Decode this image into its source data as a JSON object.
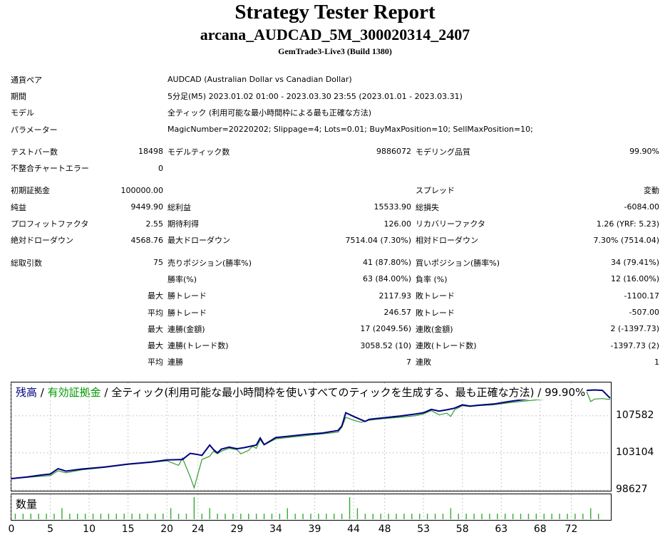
{
  "report": {
    "title": "Strategy Tester Report",
    "subtitle": "arcana_AUDCAD_5M_300020314_2407",
    "build": "GemTrade3-Live3 (Build 1380)"
  },
  "info": [
    {
      "label": "通貨ペア",
      "value": "AUDCAD (Australian Dollar vs Canadian Dollar)"
    },
    {
      "label": "期間",
      "value": "5分足(M5) 2023.01.02 01:00 - 2023.03.30 23:55 (2023.01.01 - 2023.03.31)"
    },
    {
      "label": "モデル",
      "value": "全ティック (利用可能な最小時間枠による最も正確な方法)"
    },
    {
      "label": "パラメーター",
      "value": "MagicNumber=20220202; Slippage=4; Lots=0.01; BuyMaxPosition=10; SellMaxPosition=10;"
    }
  ],
  "test": [
    [
      "テストバー数",
      "18498",
      "モデルティック数",
      "9886072",
      "モデリング品質",
      "99.90%"
    ],
    [
      "不整合チャートエラー",
      "0",
      "",
      "",
      "",
      ""
    ]
  ],
  "money": [
    [
      "初期証拠金",
      "100000.00",
      "",
      "",
      "スプレッド",
      "変動"
    ],
    [
      "純益",
      "9449.90",
      "総利益",
      "15533.90",
      "総損失",
      "-6084.00"
    ],
    [
      "プロフィットファクタ",
      "2.55",
      "期待利得",
      "126.00",
      "リカバリーファクタ",
      "1.26 (YRF: 5.23)"
    ],
    [
      "絶対ドローダウン",
      "4568.76",
      "最大ドローダウン",
      "7514.04 (7.30%)",
      "相対ドローダウン",
      "7.30% (7514.04)"
    ]
  ],
  "trades": [
    [
      "総取引数",
      "75",
      "売りポジション(勝率%)",
      "41 (87.80%)",
      "買いポジション(勝率%)",
      "34 (79.41%)"
    ],
    [
      "",
      "",
      "勝率(%)",
      "63 (84.00%)",
      "負率 (%)",
      "12 (16.00%)"
    ],
    [
      "",
      "最大",
      "勝トレード",
      "2117.93",
      "敗トレード",
      "-1100.17"
    ],
    [
      "",
      "平均",
      "勝トレード",
      "246.57",
      "敗トレード",
      "-507.00"
    ],
    [
      "",
      "最大",
      "連勝(金額)",
      "17 (2049.56)",
      "連敗(金額)",
      "2 (-1397.73)"
    ],
    [
      "",
      "最大",
      "連勝(トレード数)",
      "3058.52 (10)",
      "連敗(トレード数)",
      "-1397.73 (2)"
    ],
    [
      "",
      "平均",
      "連勝",
      "7",
      "連敗",
      "1"
    ]
  ],
  "chart_legend": {
    "balance": "残高",
    "sep1": " / ",
    "equity": "有効証拠金",
    "rest": " / 全ティック(利用可能な最小時間枠を使いすべてのティックを生成する、最も正確な方法) / 99.90%"
  },
  "volume_label": "数量",
  "colors": {
    "balance": "#000080",
    "equity": "#339933",
    "grid": "#c8c8c8",
    "volume": "#33aa33"
  },
  "chart_data": {
    "type": "line",
    "ylim": [
      98627,
      111600
    ],
    "yticks": [
      98627,
      103104,
      107582
    ],
    "xlim": [
      0,
      77
    ],
    "xticks": [
      0,
      5,
      10,
      15,
      20,
      24,
      29,
      34,
      39,
      44,
      48,
      53,
      58,
      63,
      68,
      72
    ],
    "series": [
      {
        "name": "残高",
        "x": [
          0,
          2,
          4,
          5,
          6,
          7,
          9,
          12,
          15,
          18,
          20,
          22,
          23,
          24,
          24.5,
          25.5,
          26,
          26.5,
          27,
          28,
          29,
          30,
          31,
          31.5,
          32,
          32.5,
          34,
          36,
          38,
          40,
          42,
          42.5,
          43,
          44,
          45,
          45.5,
          46,
          47,
          48,
          50,
          52,
          53,
          54,
          55,
          56,
          57,
          58,
          59,
          60,
          62,
          64,
          66,
          68,
          70,
          72,
          73,
          74,
          75,
          76,
          77
        ],
        "values": [
          100000,
          100200,
          100450,
          100550,
          101200,
          100900,
          101150,
          101400,
          101750,
          102000,
          102250,
          102300,
          103050,
          102900,
          102800,
          104050,
          103500,
          103100,
          103550,
          103800,
          103600,
          103750,
          103950,
          104050,
          104900,
          104100,
          104950,
          105150,
          105350,
          105500,
          105800,
          106350,
          107950,
          107500,
          107100,
          106900,
          107150,
          107250,
          107350,
          107550,
          107800,
          107950,
          108350,
          108150,
          108300,
          108500,
          108900,
          108750,
          108850,
          109000,
          109300,
          109550,
          109800,
          110100,
          110400,
          110500,
          110650,
          110700,
          110650,
          109700
        ]
      },
      {
        "name": "有効証拠金",
        "x": [
          0,
          2,
          4,
          5,
          6,
          7,
          9,
          12,
          15,
          18,
          20,
          21.5,
          22,
          23,
          23.5,
          24.5,
          25.5,
          26,
          26.5,
          27,
          28,
          29,
          29.5,
          30.5,
          31,
          31.5,
          32,
          32.5,
          34,
          36,
          38,
          40,
          42,
          42.5,
          43,
          44,
          45,
          45.5,
          46,
          47,
          48,
          50,
          52,
          53,
          54,
          55,
          56,
          56.5,
          57,
          58,
          59,
          60,
          62,
          64,
          66,
          68,
          70,
          72,
          73,
          74,
          74.5,
          75,
          76,
          77
        ],
        "values": [
          100000,
          100150,
          100300,
          100350,
          100950,
          100700,
          101050,
          101350,
          101700,
          101950,
          102150,
          101600,
          102500,
          100200,
          98900,
          102300,
          102700,
          103300,
          103000,
          103300,
          103650,
          103500,
          103000,
          103400,
          103900,
          103650,
          104700,
          104050,
          104800,
          105000,
          105200,
          105400,
          105600,
          106200,
          107400,
          107050,
          106800,
          106900,
          107050,
          107150,
          107250,
          107400,
          107600,
          107800,
          108200,
          107700,
          107900,
          107500,
          108300,
          108800,
          108700,
          108800,
          108900,
          109150,
          109350,
          109550,
          109700,
          110150,
          110350,
          110450,
          109300,
          109600,
          109650,
          109550
        ]
      }
    ],
    "volume": {
      "name": "数量",
      "x": [
        0,
        1,
        2,
        3,
        4,
        5,
        6,
        7,
        8,
        9,
        10,
        11,
        12,
        13,
        14,
        15,
        16,
        17,
        18,
        19,
        20,
        21,
        22,
        23,
        24,
        25,
        26,
        27,
        28,
        29,
        30,
        31,
        32,
        33,
        34,
        35,
        36,
        37,
        38,
        39,
        40,
        41,
        42,
        43,
        44,
        45,
        46,
        47,
        48,
        49,
        50,
        51,
        52,
        53,
        54,
        55,
        56,
        57,
        58,
        59,
        60,
        61,
        62,
        63,
        64,
        65,
        66,
        67,
        68,
        69,
        70,
        71,
        72,
        73,
        74,
        75
      ],
      "values": [
        1,
        1,
        1,
        1,
        1,
        1,
        2,
        1,
        1,
        1,
        1,
        1,
        1,
        1,
        1,
        1,
        1,
        1,
        1,
        1,
        2,
        1,
        1,
        4,
        1,
        2,
        1,
        1,
        1,
        1,
        1,
        1,
        1,
        1,
        1,
        2,
        1,
        1,
        1,
        1,
        1,
        1,
        1,
        4,
        2,
        1,
        1,
        1,
        1,
        1,
        1,
        1,
        1,
        1,
        1,
        1,
        2,
        1,
        1,
        1,
        1,
        1,
        1,
        1,
        1,
        1,
        1,
        1,
        1,
        1,
        1,
        1,
        1,
        1,
        2,
        1
      ]
    }
  }
}
